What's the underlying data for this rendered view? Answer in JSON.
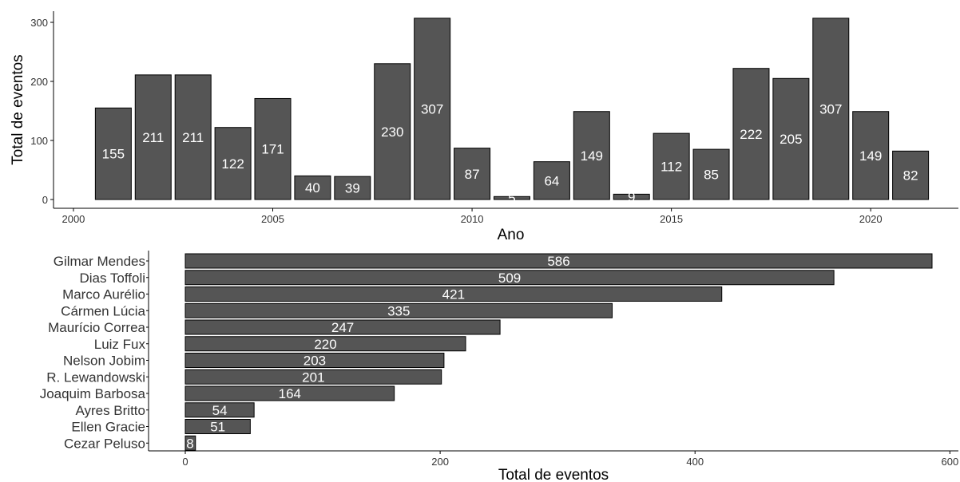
{
  "chart_data": [
    {
      "type": "bar",
      "orientation": "vertical",
      "xlabel": "Ano",
      "ylabel": "Total de eventos",
      "x": [
        2001,
        2002,
        2003,
        2004,
        2005,
        2006,
        2007,
        2008,
        2009,
        2010,
        2011,
        2012,
        2013,
        2014,
        2015,
        2016,
        2017,
        2018,
        2019,
        2020,
        2021
      ],
      "values": [
        155,
        211,
        211,
        122,
        171,
        40,
        39,
        230,
        307,
        87,
        5,
        64,
        149,
        9,
        112,
        85,
        222,
        205,
        307,
        149,
        82
      ],
      "data_labels": [
        "155",
        "211",
        "211",
        "122",
        "171",
        "40",
        "39",
        "230",
        "307",
        "87",
        "5",
        "64",
        "149",
        "9",
        "112",
        "85",
        "222",
        "205",
        "307",
        "149",
        "82"
      ],
      "xticks": [
        "2000",
        "2005",
        "2010",
        "2015",
        "2020"
      ],
      "yticks": [
        "0",
        "100",
        "200",
        "300"
      ],
      "xlim": [
        1999.5,
        2022.2
      ],
      "ylim": [
        0,
        320
      ],
      "bar_color": "#555555",
      "grid": false
    },
    {
      "type": "bar",
      "orientation": "horizontal",
      "xlabel": "Total de eventos",
      "ylabel": "",
      "categories": [
        "Gilmar Mendes",
        "Dias Toffoli",
        "Marco Aurélio",
        "Cármen Lúcia",
        "Maurício Correa",
        "Luiz Fux",
        "Nelson Jobim",
        "R. Lewandowski",
        "Joaquim Barbosa",
        "Ayres Britto",
        "Ellen Gracie",
        "Cezar Peluso"
      ],
      "values": [
        586,
        509,
        421,
        335,
        247,
        220,
        203,
        201,
        164,
        54,
        51,
        8
      ],
      "data_labels": [
        "586",
        "509",
        "421",
        "335",
        "247",
        "220",
        "203",
        "201",
        "164",
        "54",
        "51",
        "8"
      ],
      "xticks": [
        "0",
        "200",
        "400",
        "600"
      ],
      "xlim": [
        -29,
        600
      ],
      "bar_color": "#555555",
      "grid": false
    }
  ]
}
